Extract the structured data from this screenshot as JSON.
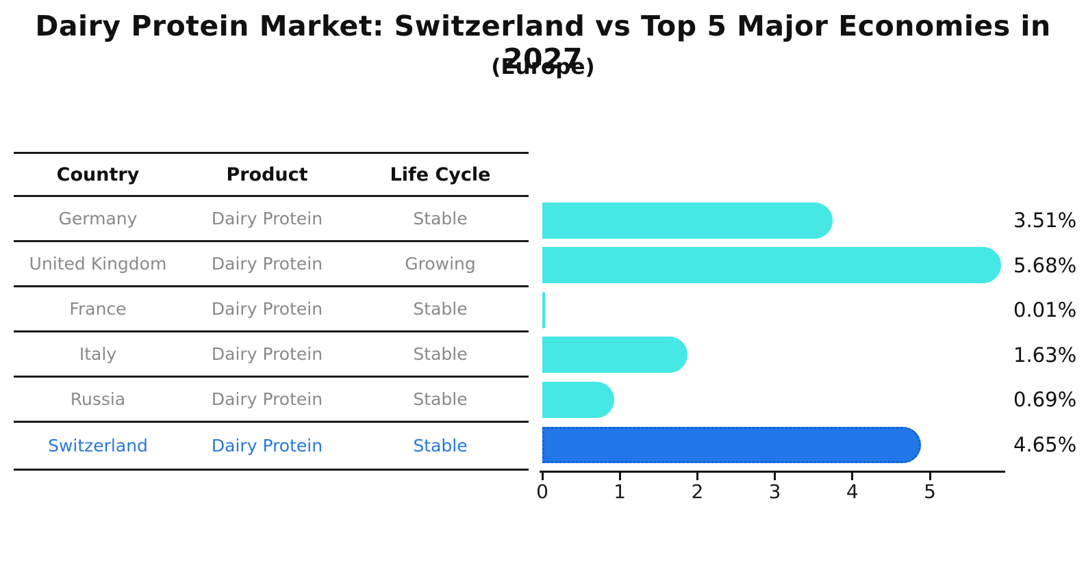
{
  "title": "Dairy Protein Market: Switzerland vs Top 5 Major Economies in 2027",
  "subtitle": "(Europe)",
  "table": {
    "headers": [
      "Country",
      "Product",
      "Life Cycle"
    ],
    "rows": [
      {
        "country": "Germany",
        "product": "Dairy Protein",
        "life_cycle": "Stable",
        "highlight": false
      },
      {
        "country": "United Kingdom",
        "product": "Dairy Protein",
        "life_cycle": "Growing",
        "highlight": false
      },
      {
        "country": "France",
        "product": "Dairy Protein",
        "life_cycle": "Stable",
        "highlight": false
      },
      {
        "country": "Italy",
        "product": "Dairy Protein",
        "life_cycle": "Stable",
        "highlight": false
      },
      {
        "country": "Russia",
        "product": "Dairy Protein",
        "life_cycle": "Stable",
        "highlight": false
      },
      {
        "country": "Switzerland",
        "product": "Dairy Protein",
        "life_cycle": "Stable",
        "highlight": true
      }
    ]
  },
  "chart_data": {
    "type": "bar",
    "orientation": "horizontal",
    "title": "Dairy Protein Market: Switzerland vs Top 5 Major Economies in 2027 (Europe)",
    "categories": [
      "Germany",
      "United Kingdom",
      "France",
      "Italy",
      "Russia",
      "Switzerland"
    ],
    "values": [
      3.51,
      5.68,
      0.01,
      1.63,
      0.69,
      4.65
    ],
    "value_labels": [
      "3.51%",
      "5.68%",
      "0.01%",
      "1.63%",
      "0.69%",
      "4.65%"
    ],
    "x_ticks": [
      0,
      1,
      2,
      3,
      4,
      5
    ],
    "xlim": [
      0,
      5.97
    ],
    "grid": false,
    "legend": false,
    "bar_color": "#45e8e4",
    "highlight_color": "#2277e8",
    "highlight_index": 5
  },
  "colors": {
    "bar_cyan": "#45e8e4",
    "accent_blue": "#2277e8",
    "highlight_text": "#2878dc",
    "row_text_gray": "#8a8a8a",
    "axis_black": "#111111"
  }
}
